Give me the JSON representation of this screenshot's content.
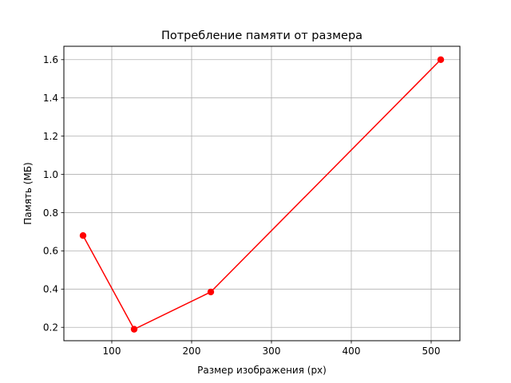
{
  "chart_data": {
    "type": "line",
    "title": "Потребление памяти от размера",
    "xlabel": "Размер изображения (px)",
    "ylabel": "Память (МБ)",
    "x": [
      64,
      128,
      224,
      512
    ],
    "series": [
      {
        "values": [
          0.68,
          0.19,
          0.385,
          1.6
        ],
        "color": "#ff0000",
        "marker": "circle"
      }
    ],
    "xlim": [
      40,
      536
    ],
    "ylim": [
      0.13,
      1.67
    ],
    "xticks": [
      100,
      200,
      300,
      400,
      500
    ],
    "yticks": [
      0.2,
      0.4,
      0.6,
      0.8,
      1.0,
      1.2,
      1.4,
      1.6
    ],
    "xtick_labels": [
      "100",
      "200",
      "300",
      "400",
      "500"
    ],
    "ytick_labels": [
      "0.2",
      "0.4",
      "0.6",
      "0.8",
      "1.0",
      "1.2",
      "1.4",
      "1.6"
    ],
    "grid": true,
    "legend": "none"
  }
}
